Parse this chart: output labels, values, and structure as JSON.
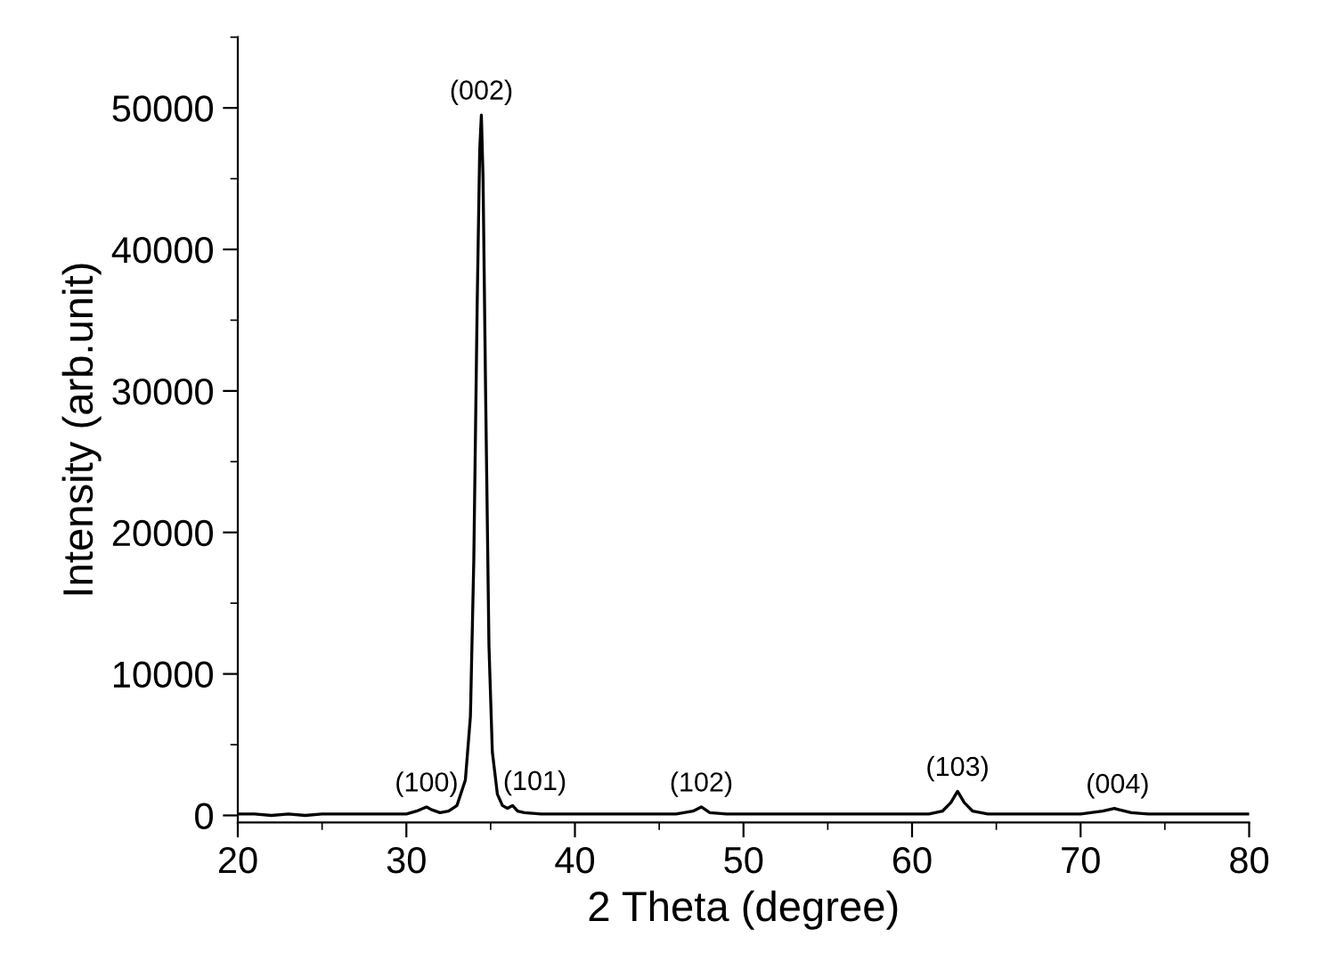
{
  "chart_data": {
    "type": "line",
    "xlabel": "2 Theta (degree)",
    "ylabel": "Intensity (arb.unit)",
    "xlim": [
      20,
      80
    ],
    "ylim": [
      -500,
      55000
    ],
    "xticks": [
      20,
      30,
      40,
      50,
      60,
      70,
      80
    ],
    "yticks": [
      0,
      10000,
      20000,
      30000,
      40000,
      50000
    ],
    "grid": false,
    "legend": false,
    "marker": "none",
    "line_style": "solid",
    "series": [
      {
        "color": "#000000",
        "x": [
          20,
          21,
          22,
          23,
          24,
          25,
          26,
          27,
          28,
          29,
          30,
          30.6,
          31.0,
          31.2,
          31.5,
          32,
          32.5,
          33,
          33.5,
          33.8,
          34.0,
          34.2,
          34.35,
          34.45,
          34.55,
          34.7,
          34.9,
          35.1,
          35.4,
          35.7,
          36.0,
          36.3,
          36.6,
          37,
          38,
          40,
          42,
          44,
          46,
          47,
          47.5,
          48,
          49,
          52,
          55,
          58,
          60,
          61,
          61.8,
          62.3,
          62.7,
          63.1,
          63.6,
          64.5,
          66,
          68,
          70,
          71.3,
          72.0,
          72.3,
          73,
          74,
          76,
          78,
          80
        ],
        "values": [
          100,
          100,
          0,
          100,
          0,
          100,
          100,
          100,
          100,
          100,
          100,
          300,
          500,
          600,
          400,
          200,
          300,
          700,
          2500,
          7000,
          18000,
          36000,
          47000,
          49500,
          45000,
          30000,
          12000,
          4500,
          1500,
          700,
          500,
          700,
          300,
          200,
          100,
          100,
          100,
          100,
          100,
          300,
          600,
          200,
          100,
          100,
          100,
          100,
          100,
          100,
          300,
          900,
          1700,
          900,
          300,
          100,
          100,
          100,
          100,
          300,
          500,
          400,
          200,
          100,
          100,
          100,
          100
        ]
      }
    ],
    "annotations": [
      {
        "text": "(100)",
        "x": 31.2,
        "y": 600
      },
      {
        "text": "(002)",
        "x": 34.45,
        "y": 49500
      },
      {
        "text": "(101)",
        "x": 36.3,
        "y": 700
      },
      {
        "text": "(102)",
        "x": 47.5,
        "y": 600
      },
      {
        "text": "(103)",
        "x": 62.7,
        "y": 1700
      },
      {
        "text": "(004)",
        "x": 72.2,
        "y": 500
      }
    ]
  }
}
